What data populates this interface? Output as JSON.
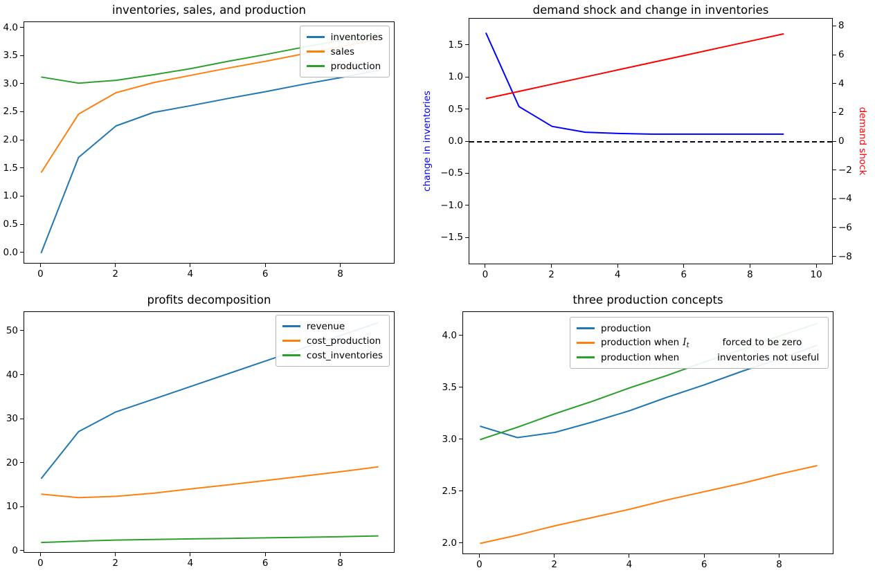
{
  "figure": {
    "background": "#ffffff"
  },
  "chart_data": [
    {
      "type": "line",
      "title": "inventories, sales, and production",
      "x": [
        0,
        1,
        2,
        3,
        4,
        5,
        6,
        7,
        8,
        9
      ],
      "xlim": [
        -0.45,
        9.45
      ],
      "ylim": [
        -0.2,
        4.105
      ],
      "xticks": {
        "values": [
          0,
          2,
          4,
          6,
          8
        ],
        "labels": [
          "0",
          "2",
          "4",
          "6",
          "8"
        ]
      },
      "yticks": {
        "values": [
          0,
          0.5,
          1,
          1.5,
          2,
          2.5,
          3,
          3.5,
          4
        ],
        "labels": [
          "0.0",
          "0.5",
          "1.0",
          "1.5",
          "2.0",
          "2.5",
          "3.0",
          "3.5",
          "4.0"
        ]
      },
      "legend_position": "upper right",
      "grid": false,
      "series": [
        {
          "name": "inventories",
          "color": "#1f77b4",
          "values": [
            0.0,
            1.7,
            2.26,
            2.5,
            2.62,
            2.75,
            2.87,
            3.0,
            3.12,
            3.25
          ]
        },
        {
          "name": "sales",
          "color": "#ff7f0e",
          "values": [
            1.43,
            2.47,
            2.85,
            3.03,
            3.16,
            3.29,
            3.41,
            3.54,
            3.67,
            3.8
          ]
        },
        {
          "name": "production",
          "color": "#2ca02c",
          "values": [
            3.13,
            3.02,
            3.07,
            3.17,
            3.28,
            3.41,
            3.53,
            3.66,
            3.78,
            3.91
          ]
        }
      ]
    },
    {
      "type": "line",
      "title": "demand shock and change in inventories",
      "x": [
        0,
        1,
        2,
        3,
        4,
        5,
        6,
        7,
        8,
        9
      ],
      "xlim": [
        -0.5,
        10.5
      ],
      "ylim": [
        -1.92,
        1.92
      ],
      "ylim_right": [
        -8.55,
        8.55
      ],
      "xticks": {
        "values": [
          0,
          2,
          4,
          6,
          8,
          10
        ],
        "labels": [
          "0",
          "2",
          "4",
          "6",
          "8",
          "10"
        ]
      },
      "yticks": {
        "values": [
          -1.5,
          -1.0,
          -0.5,
          0,
          0.5,
          1.0,
          1.5
        ],
        "labels": [
          "−1.5",
          "−1.0",
          "−0.5",
          "0.0",
          "0.5",
          "1.0",
          "1.5"
        ]
      },
      "yticks_right": {
        "values": [
          -8,
          -6,
          -4,
          -2,
          0,
          2,
          4,
          6,
          8
        ],
        "labels": [
          "−8",
          "−6",
          "−4",
          "−2",
          "0",
          "2",
          "4",
          "6",
          "8"
        ]
      },
      "ylabel_left": {
        "text": "change in inventories",
        "color": "#0000ff"
      },
      "ylabel_right": {
        "text": "demand shock",
        "color": "#ff0000"
      },
      "grid": false,
      "series": [
        {
          "name": "change in inventories",
          "color": "#0000ff",
          "values": [
            1.7,
            0.55,
            0.24,
            0.15,
            0.13,
            0.12,
            0.12,
            0.12,
            0.12,
            0.12
          ]
        },
        {
          "name": "demand shock",
          "color": "#ff0000",
          "axis": "right",
          "values": [
            3.0,
            3.5,
            4.0,
            4.5,
            5.0,
            5.5,
            6.0,
            6.5,
            7.0,
            7.5
          ]
        },
        {
          "name": "zero line",
          "color": "#000000",
          "dash": true,
          "x": [
            -0.5,
            10.5
          ],
          "values": [
            0,
            0
          ]
        }
      ]
    },
    {
      "type": "line",
      "title": "profits decomposition",
      "x": [
        0,
        1,
        2,
        3,
        4,
        5,
        6,
        7,
        8,
        9
      ],
      "xlim": [
        -0.45,
        9.45
      ],
      "ylim": [
        -0.5,
        54.4
      ],
      "xticks": {
        "values": [
          0,
          2,
          4,
          6,
          8
        ],
        "labels": [
          "0",
          "2",
          "4",
          "6",
          "8"
        ]
      },
      "yticks": {
        "values": [
          0,
          10,
          20,
          30,
          40,
          50
        ],
        "labels": [
          "0",
          "10",
          "20",
          "30",
          "40",
          "50"
        ]
      },
      "legend_position": "upper right",
      "grid": false,
      "series": [
        {
          "name": "revenue",
          "color": "#1f77b4",
          "values": [
            16.5,
            27.2,
            31.7,
            34.6,
            37.5,
            40.4,
            43.3,
            46.2,
            49.1,
            52.0
          ]
        },
        {
          "name": "cost_production",
          "color": "#ff7f0e",
          "values": [
            13.0,
            12.2,
            12.5,
            13.2,
            14.2,
            15.1,
            16.1,
            17.1,
            18.1,
            19.2
          ]
        },
        {
          "name": "cost_inventories",
          "color": "#2ca02c",
          "values": [
            2.0,
            2.3,
            2.55,
            2.7,
            2.82,
            2.93,
            3.05,
            3.18,
            3.32,
            3.5
          ]
        }
      ]
    },
    {
      "type": "line",
      "title": "three production concepts",
      "x": [
        0,
        1,
        2,
        3,
        4,
        5,
        6,
        7,
        8,
        9
      ],
      "xlim": [
        -0.45,
        9.45
      ],
      "ylim": [
        1.89,
        4.23
      ],
      "xticks": {
        "values": [
          0,
          2,
          4,
          6,
          8
        ],
        "labels": [
          "0",
          "2",
          "4",
          "6",
          "8"
        ]
      },
      "yticks": {
        "values": [
          2.0,
          2.5,
          3.0,
          3.5,
          4.0
        ],
        "labels": [
          "2.0",
          "2.5",
          "3.0",
          "3.5",
          "4.0"
        ]
      },
      "legend_position": "upper center",
      "grid": false,
      "series": [
        {
          "name": "production",
          "color": "#1f77b4",
          "values": [
            3.13,
            3.02,
            3.07,
            3.17,
            3.28,
            3.41,
            3.53,
            3.66,
            3.78,
            3.91
          ]
        },
        {
          "name": "production when I_t forced to be zero",
          "color": "#ff7f0e",
          "legend": {
            "pre": "production when",
            "math_base": "I",
            "math_sub": "t",
            "post": "forced to be zero"
          },
          "values": [
            2.0,
            2.08,
            2.17,
            2.25,
            2.33,
            2.42,
            2.5,
            2.58,
            2.67,
            2.75
          ]
        },
        {
          "name": "production when inventories not useful",
          "color": "#2ca02c",
          "legend": {
            "pre": "production when",
            "post": "inventories not useful"
          },
          "values": [
            3.0,
            3.12,
            3.25,
            3.37,
            3.5,
            3.62,
            3.75,
            3.87,
            4.0,
            4.12
          ]
        }
      ]
    }
  ]
}
